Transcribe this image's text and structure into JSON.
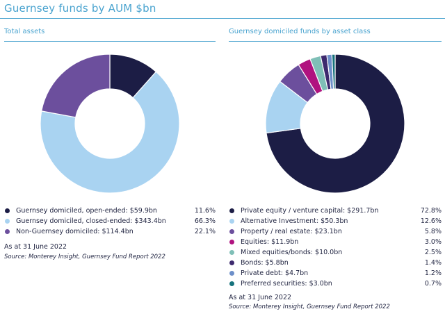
{
  "page": {
    "title": "Guernsey funds by AUM $bn",
    "accent_color": "#49a3cf"
  },
  "chart_data": [
    {
      "type": "pie",
      "style": "donut",
      "title": "Total assets",
      "slices": [
        {
          "label": "Guernsey domiciled, open-ended: $59.9bn",
          "value": 59.9,
          "pct": "11.6%",
          "color": "#1c1d45"
        },
        {
          "label": "Guernsey domiciled, closed-ended: $343.4bn",
          "value": 343.4,
          "pct": "66.3%",
          "color": "#a9d3f1"
        },
        {
          "label": "Non-Guernsey domiciled: $114.4bn",
          "value": 114.4,
          "pct": "22.1%",
          "color": "#6c4f9d"
        }
      ],
      "as_at": "As at 31 June 2022",
      "source": "Source: Monterey Insight, Guernsey Fund Report 2022"
    },
    {
      "type": "pie",
      "style": "donut",
      "title": "Guernsey domiciled funds by asset class",
      "slices": [
        {
          "label": "Private equity / venture capital: $291.7bn",
          "value": 291.7,
          "pct": "72.8%",
          "color": "#1c1d45"
        },
        {
          "label": "Alternative Investment: $50.3bn",
          "value": 50.3,
          "pct": "12.6%",
          "color": "#a9d3f1"
        },
        {
          "label": "Property / real estate: $23.1bn",
          "value": 23.1,
          "pct": "5.8%",
          "color": "#6c4f9d"
        },
        {
          "label": "Equities: $11.9bn",
          "value": 11.9,
          "pct": "3.0%",
          "color": "#b0127f"
        },
        {
          "label": "Mixed equities/bonds: $10.0bn",
          "value": 10.0,
          "pct": "2.5%",
          "color": "#7fbfb7"
        },
        {
          "label": "Bonds: $5.8bn",
          "value": 5.8,
          "pct": "1.4%",
          "color": "#3d2a6e"
        },
        {
          "label": "Private debt: $4.7bn",
          "value": 4.7,
          "pct": "1.2%",
          "color": "#6d8fc9"
        },
        {
          "label": "Preferred securities: $3.0bn",
          "value": 3.0,
          "pct": "0.7%",
          "color": "#16727c"
        }
      ],
      "as_at": "As at 31 June 2022",
      "source": "Source: Monterey Insight, Guernsey Fund Report 2022"
    }
  ]
}
